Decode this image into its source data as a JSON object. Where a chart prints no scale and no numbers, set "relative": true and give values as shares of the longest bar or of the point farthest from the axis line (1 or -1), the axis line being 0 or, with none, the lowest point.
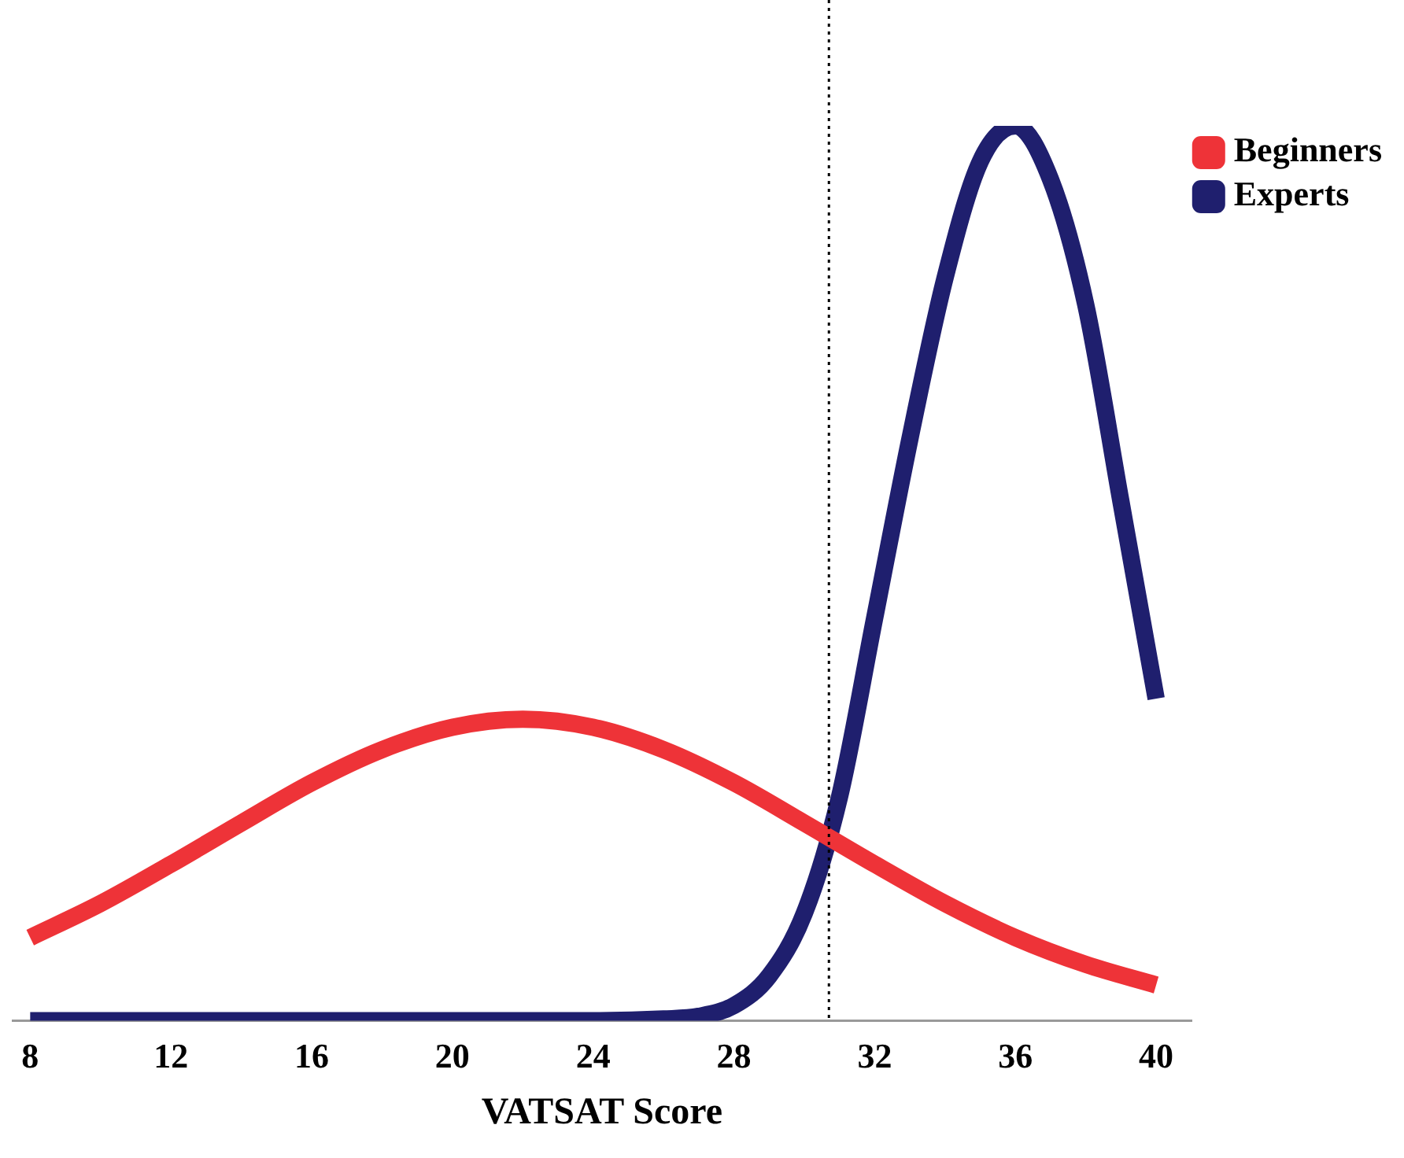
{
  "chart_data": {
    "type": "line",
    "xlabel": "VATSAT Score",
    "relative": true,
    "xlim": [
      7.5,
      41
    ],
    "xticks": [
      8,
      12,
      16,
      20,
      24,
      28,
      32,
      36,
      40
    ],
    "tick_labels": "x",
    "grid": false,
    "legend": "top right",
    "marker": "none",
    "line_style": "solid",
    "ref_lines": [
      {
        "axis": "x",
        "value": 30.7,
        "color": "#000000",
        "line_style": "dotted"
      }
    ],
    "series": [
      {
        "name": "Beginners",
        "color": "#ee3338",
        "x": [
          8,
          10,
          12,
          14,
          16,
          18,
          20,
          22,
          24,
          26,
          28,
          30,
          32,
          34,
          36,
          38,
          40
        ],
        "values": [
          0.093,
          0.131,
          0.175,
          0.221,
          0.266,
          0.303,
          0.328,
          0.337,
          0.328,
          0.303,
          0.266,
          0.221,
          0.175,
          0.131,
          0.093,
          0.063,
          0.04
        ]
      },
      {
        "name": "Experts",
        "color": "#1f1f6e",
        "x": [
          8,
          12,
          16,
          20,
          24,
          26,
          27,
          28,
          29,
          30,
          31,
          32,
          33,
          34,
          35,
          36,
          37,
          38,
          39,
          40
        ],
        "values": [
          0,
          0,
          0,
          0,
          0,
          0.002,
          0.005,
          0.017,
          0.05,
          0.12,
          0.25,
          0.45,
          0.65,
          0.83,
          0.96,
          1,
          0.94,
          0.8,
          0.58,
          0.36
        ]
      }
    ]
  }
}
